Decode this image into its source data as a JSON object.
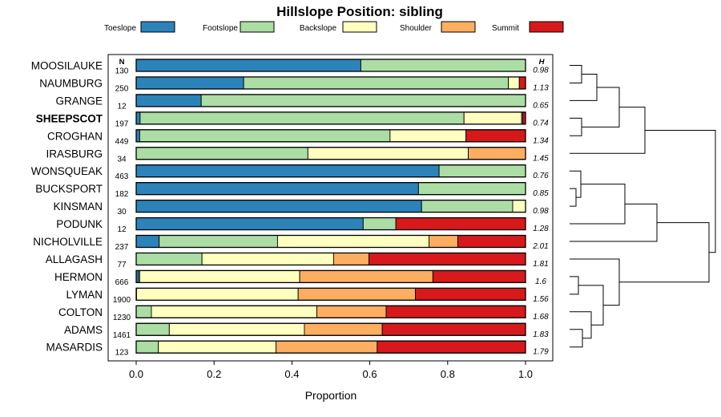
{
  "chart_data": {
    "type": "bar",
    "orientation": "horizontal",
    "stacked": true,
    "title": "Hillslope Position: sibling",
    "xlabel": "Proportion",
    "xlim": [
      0,
      1
    ],
    "xticks": [
      "0.0",
      "0.2",
      "0.4",
      "0.6",
      "0.8",
      "1.0"
    ],
    "n_header": "N",
    "h_header": "H",
    "legend_position": "top",
    "categories": [
      "MOOSILAUKE",
      "NAUMBURG",
      "GRANGE",
      "SHEEPSCOT",
      "CROGHAN",
      "IRASBURG",
      "WONSQUEAK",
      "BUCKSPORT",
      "KINSMAN",
      "PODUNK",
      "NICHOLVILLE",
      "ALLAGASH",
      "HERMON",
      "LYMAN",
      "COLTON",
      "ADAMS",
      "MASARDIS"
    ],
    "highlight": "SHEEPSCOT",
    "n": [
      "130",
      "250",
      "12",
      "197",
      "449",
      "34",
      "463",
      "182",
      "30",
      "12",
      "237",
      "77",
      "666",
      "1900",
      "1230",
      "1461",
      "123"
    ],
    "h": [
      "0.98",
      "1.13",
      "0.65",
      "0.74",
      "1.34",
      "1.45",
      "0.76",
      "0.85",
      "0.98",
      "1.28",
      "2.01",
      "1.81",
      "1.6",
      "1.56",
      "1.68",
      "1.83",
      "1.79"
    ],
    "series": [
      {
        "name": "Toeslope",
        "color": "#2b83ba",
        "values": [
          0.577,
          0.276,
          0.167,
          0.01,
          0.009,
          0.0,
          0.778,
          0.725,
          0.733,
          0.583,
          0.059,
          0.0,
          0.006,
          0.001,
          0.0,
          0.0,
          0.0
        ]
      },
      {
        "name": "Footslope",
        "color": "#abdda4",
        "values": [
          0.423,
          0.68,
          0.833,
          0.832,
          0.643,
          0.441,
          0.222,
          0.275,
          0.234,
          0.084,
          0.304,
          0.169,
          0.003,
          0.0,
          0.039,
          0.085,
          0.057
        ]
      },
      {
        "name": "Backslope",
        "color": "#ffffbf",
        "values": [
          0.0,
          0.028,
          0.0,
          0.148,
          0.195,
          0.412,
          0.0,
          0.0,
          0.033,
          0.0,
          0.389,
          0.338,
          0.411,
          0.415,
          0.425,
          0.347,
          0.302
        ]
      },
      {
        "name": "Shoulder",
        "color": "#fdae61",
        "values": [
          0.0,
          0.0,
          0.0,
          0.003,
          0.0,
          0.147,
          0.0,
          0.0,
          0.0,
          0.0,
          0.074,
          0.091,
          0.342,
          0.301,
          0.178,
          0.2,
          0.26
        ]
      },
      {
        "name": "Summit",
        "color": "#d7191c",
        "values": [
          0.0,
          0.016,
          0.0,
          0.007,
          0.153,
          0.0,
          0.0,
          0.0,
          0.0,
          0.333,
          0.174,
          0.402,
          0.238,
          0.283,
          0.358,
          0.368,
          0.381
        ]
      }
    ]
  }
}
